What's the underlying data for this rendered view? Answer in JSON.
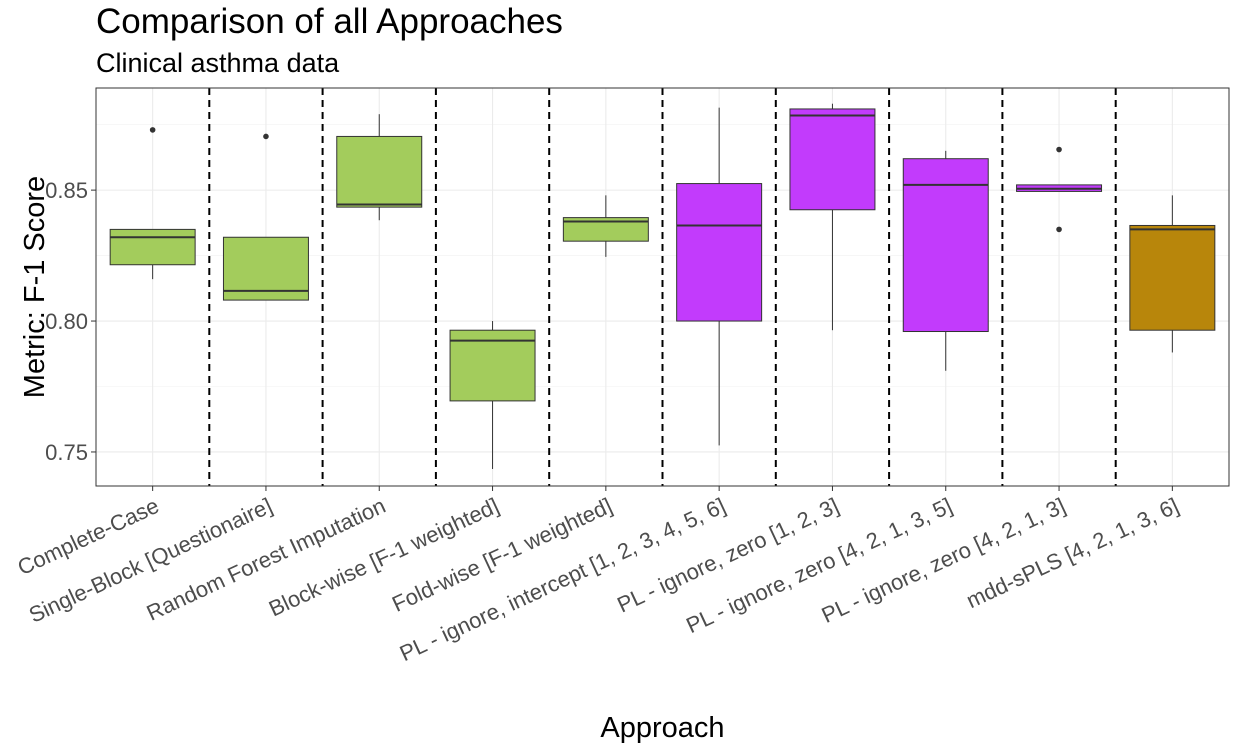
{
  "chart_data": {
    "type": "boxplot",
    "title": "Comparison of all Approaches",
    "subtitle": "Clinical asthma data",
    "xlabel": "Approach",
    "ylabel": "Metric: F-1 Score",
    "ylim": [
      0.737,
      0.889
    ],
    "yticks": [
      0.75,
      0.8,
      0.85
    ],
    "ytick_labels": [
      "0.75",
      "0.80",
      "0.85"
    ],
    "grid": true,
    "legend": "none",
    "categories": [
      "Complete-Case",
      "Single-Block [Questionaire]",
      "Random Forest Imputation",
      "Block-wise [F-1 weighted]",
      "Fold-wise [F-1 weighted]",
      "PL - ignore, intercept [1, 2, 3, 4, 5, 6]",
      "PL - ignore, zero [1, 2, 3]",
      "PL - ignore, zero [4, 2, 1, 3, 5]",
      "PL - ignore, zero [4, 2, 1, 3]",
      "mdd-sPLS [4, 2, 1, 3, 6]"
    ],
    "boxes": [
      {
        "lower_whisker": 0.816,
        "q1": 0.8215,
        "median": 0.832,
        "q3": 0.835,
        "upper_whisker": 0.835,
        "outliers": [
          0.873
        ],
        "color": "#a3cc5c"
      },
      {
        "lower_whisker": 0.808,
        "q1": 0.808,
        "median": 0.8115,
        "q3": 0.832,
        "upper_whisker": 0.832,
        "outliers": [
          0.8705
        ],
        "color": "#a3cc5c"
      },
      {
        "lower_whisker": 0.8385,
        "q1": 0.8435,
        "median": 0.8445,
        "q3": 0.8705,
        "upper_whisker": 0.879,
        "outliers": [],
        "color": "#a3cc5c"
      },
      {
        "lower_whisker": 0.7435,
        "q1": 0.7695,
        "median": 0.7925,
        "q3": 0.7965,
        "upper_whisker": 0.8,
        "outliers": [],
        "color": "#a3cc5c"
      },
      {
        "lower_whisker": 0.8245,
        "q1": 0.8305,
        "median": 0.838,
        "q3": 0.8395,
        "upper_whisker": 0.848,
        "outliers": [],
        "color": "#a3cc5c"
      },
      {
        "lower_whisker": 0.7525,
        "q1": 0.8,
        "median": 0.8365,
        "q3": 0.8525,
        "upper_whisker": 0.8815,
        "outliers": [],
        "color": "#c23bfc"
      },
      {
        "lower_whisker": 0.7965,
        "q1": 0.8425,
        "median": 0.8785,
        "q3": 0.881,
        "upper_whisker": 0.883,
        "outliers": [],
        "color": "#c23bfc"
      },
      {
        "lower_whisker": 0.781,
        "q1": 0.796,
        "median": 0.852,
        "q3": 0.862,
        "upper_whisker": 0.865,
        "outliers": [],
        "color": "#c23bfc"
      },
      {
        "lower_whisker": 0.8495,
        "q1": 0.8495,
        "median": 0.8505,
        "q3": 0.852,
        "upper_whisker": 0.852,
        "outliers": [
          0.8655,
          0.835
        ],
        "color": "#c23bfc"
      },
      {
        "lower_whisker": 0.788,
        "q1": 0.7965,
        "median": 0.835,
        "q3": 0.8365,
        "upper_whisker": 0.848,
        "outliers": [],
        "color": "#b8860b"
      }
    ]
  }
}
